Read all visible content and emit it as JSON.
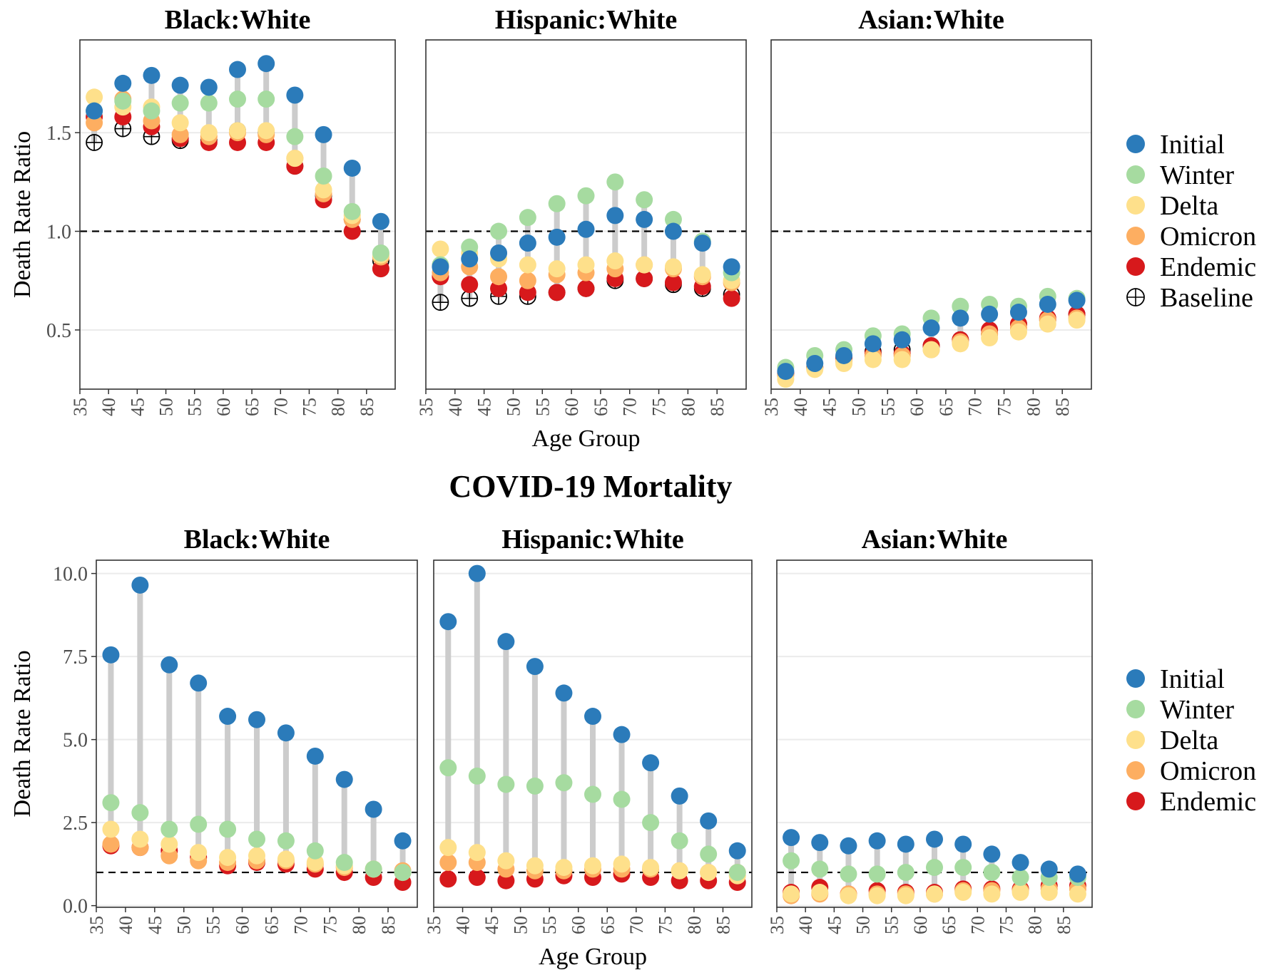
{
  "figure": {
    "middle_title": "COVID-19 Mortality",
    "colors": {
      "Initial": "#2b7bba",
      "Winter": "#a6dba0",
      "Delta": "#fee08b",
      "Omicron": "#fdae61",
      "Endemic": "#d7191c",
      "segment": "#cccccc",
      "gridline": "#ebebeb",
      "refline": "#000000",
      "panel_border": "#333333"
    }
  },
  "chart_data": [
    {
      "type": "scatter",
      "title": "Black:White",
      "xlabel": "",
      "ylabel": "Death Rate Ratio",
      "ylim": [
        0.2,
        1.97
      ],
      "yticks": [
        0.5,
        1.0,
        1.5
      ],
      "ytick_labels": [
        "0.5",
        "1.0",
        "1.5"
      ],
      "reference_line": 1.0,
      "categories": [
        "35",
        "40",
        "45",
        "50",
        "55",
        "60",
        "65",
        "70",
        "75",
        "80",
        "85"
      ],
      "x": [
        37.5,
        42.5,
        47.5,
        52.5,
        57.5,
        62.5,
        67.5,
        72.5,
        77.5,
        82.5,
        87.5
      ],
      "series": [
        {
          "name": "Initial",
          "values": [
            1.61,
            1.75,
            1.79,
            1.74,
            1.73,
            1.82,
            1.85,
            1.69,
            1.49,
            1.32,
            1.05
          ]
        },
        {
          "name": "Winter",
          "values": [
            1.61,
            1.66,
            1.61,
            1.65,
            1.65,
            1.67,
            1.67,
            1.48,
            1.28,
            1.1,
            0.89
          ]
        },
        {
          "name": "Delta",
          "values": [
            1.68,
            1.63,
            1.63,
            1.55,
            1.5,
            1.51,
            1.51,
            1.37,
            1.21,
            1.08,
            0.88
          ]
        },
        {
          "name": "Omicron",
          "values": [
            1.55,
            1.67,
            1.56,
            1.49,
            1.48,
            1.5,
            1.49,
            1.37,
            1.19,
            1.06,
            0.87
          ]
        },
        {
          "name": "Endemic",
          "values": [
            1.58,
            1.58,
            1.53,
            1.47,
            1.45,
            1.45,
            1.45,
            1.33,
            1.16,
            1.0,
            0.81
          ]
        },
        {
          "name": "Baseline",
          "values": [
            1.45,
            1.52,
            1.48,
            1.46,
            1.46,
            1.51,
            1.5,
            1.33,
            1.18,
            1.06,
            0.85
          ]
        }
      ]
    },
    {
      "type": "scatter",
      "title": "Hispanic:White",
      "xlabel": "Age Group",
      "ylabel": "",
      "ylim": [
        0.2,
        1.97
      ],
      "yticks": [
        0.5,
        1.0,
        1.5
      ],
      "reference_line": 1.0,
      "categories": [
        "35",
        "40",
        "45",
        "50",
        "55",
        "60",
        "65",
        "70",
        "75",
        "80",
        "85"
      ],
      "x": [
        37.5,
        42.5,
        47.5,
        52.5,
        57.5,
        62.5,
        67.5,
        72.5,
        77.5,
        82.5,
        87.5
      ],
      "series": [
        {
          "name": "Initial",
          "values": [
            0.82,
            0.86,
            0.89,
            0.94,
            0.97,
            1.01,
            1.08,
            1.06,
            1.0,
            0.94,
            0.82
          ]
        },
        {
          "name": "Winter",
          "values": [
            0.83,
            0.92,
            1.0,
            1.07,
            1.14,
            1.18,
            1.25,
            1.16,
            1.06,
            0.95,
            0.79
          ]
        },
        {
          "name": "Delta",
          "values": [
            0.91,
            0.89,
            0.86,
            0.83,
            0.81,
            0.83,
            0.85,
            0.83,
            0.82,
            0.78,
            0.75
          ]
        },
        {
          "name": "Omicron",
          "values": [
            0.79,
            0.82,
            0.77,
            0.75,
            0.78,
            0.79,
            0.81,
            0.83,
            0.81,
            0.77,
            0.74
          ]
        },
        {
          "name": "Endemic",
          "values": [
            0.77,
            0.73,
            0.71,
            0.69,
            0.69,
            0.71,
            0.76,
            0.76,
            0.74,
            0.72,
            0.66
          ]
        },
        {
          "name": "Baseline",
          "values": [
            0.64,
            0.66,
            0.67,
            0.67,
            0.69,
            0.71,
            0.75,
            0.76,
            0.73,
            0.71,
            0.68
          ]
        }
      ]
    },
    {
      "type": "scatter",
      "title": "Asian:White",
      "xlabel": "",
      "ylabel": "",
      "ylim": [
        0.2,
        1.97
      ],
      "yticks": [
        0.5,
        1.0,
        1.5
      ],
      "reference_line": 1.0,
      "categories": [
        "35",
        "40",
        "45",
        "50",
        "55",
        "60",
        "65",
        "70",
        "75",
        "80",
        "85"
      ],
      "x": [
        37.5,
        42.5,
        47.5,
        52.5,
        57.5,
        62.5,
        67.5,
        72.5,
        77.5,
        82.5,
        87.5
      ],
      "series": [
        {
          "name": "Initial",
          "values": [
            0.29,
            0.33,
            0.37,
            0.43,
            0.45,
            0.51,
            0.56,
            0.58,
            0.59,
            0.63,
            0.65
          ]
        },
        {
          "name": "Winter",
          "values": [
            0.31,
            0.37,
            0.4,
            0.47,
            0.48,
            0.56,
            0.62,
            0.63,
            0.62,
            0.67,
            0.66
          ]
        },
        {
          "name": "Delta",
          "values": [
            0.25,
            0.3,
            0.33,
            0.35,
            0.35,
            0.4,
            0.43,
            0.46,
            0.49,
            0.53,
            0.55
          ]
        },
        {
          "name": "Omicron",
          "values": [
            0.27,
            0.31,
            0.34,
            0.37,
            0.37,
            0.4,
            0.44,
            0.48,
            0.51,
            0.55,
            0.56
          ]
        },
        {
          "name": "Endemic",
          "values": [
            0.28,
            0.31,
            0.36,
            0.38,
            0.38,
            0.42,
            0.45,
            0.5,
            0.53,
            0.56,
            0.58
          ]
        },
        {
          "name": "Baseline",
          "values": [
            0.28,
            0.31,
            0.36,
            0.39,
            0.4,
            0.42,
            0.45,
            0.48,
            0.53,
            0.55,
            0.58
          ]
        }
      ]
    },
    {
      "type": "scatter",
      "title": "Black:White",
      "xlabel": "",
      "ylabel": "Death Rate Ratio",
      "ylim": [
        -0.05,
        10.4
      ],
      "yticks": [
        0.0,
        2.5,
        5.0,
        7.5,
        10.0
      ],
      "ytick_labels": [
        "0.0",
        "2.5",
        "5.0",
        "7.5",
        "10.0"
      ],
      "reference_line": 1.0,
      "categories": [
        "35",
        "40",
        "45",
        "50",
        "55",
        "60",
        "65",
        "70",
        "75",
        "80",
        "85"
      ],
      "x": [
        37.5,
        42.5,
        47.5,
        52.5,
        57.5,
        62.5,
        67.5,
        72.5,
        77.5,
        82.5,
        87.5
      ],
      "series": [
        {
          "name": "Initial",
          "values": [
            7.55,
            9.65,
            7.25,
            6.7,
            5.7,
            5.6,
            5.2,
            4.5,
            3.8,
            2.9,
            1.95
          ]
        },
        {
          "name": "Winter",
          "values": [
            3.1,
            2.8,
            2.3,
            2.45,
            2.3,
            2.0,
            1.95,
            1.65,
            1.3,
            1.1,
            1.0
          ]
        },
        {
          "name": "Delta",
          "values": [
            2.3,
            2.0,
            1.85,
            1.6,
            1.45,
            1.5,
            1.4,
            1.3,
            1.2,
            1.1,
            1.0
          ]
        },
        {
          "name": "Omicron",
          "values": [
            1.85,
            1.75,
            1.5,
            1.35,
            1.3,
            1.35,
            1.35,
            1.25,
            1.15,
            1.1,
            1.05
          ]
        },
        {
          "name": "Endemic",
          "values": [
            1.8,
            1.75,
            1.65,
            1.45,
            1.2,
            1.3,
            1.25,
            1.1,
            1.0,
            0.85,
            0.7
          ]
        }
      ]
    },
    {
      "type": "scatter",
      "title": "Hispanic:White",
      "xlabel": "Age Group",
      "ylabel": "",
      "ylim": [
        -0.05,
        10.4
      ],
      "yticks": [
        0.0,
        2.5,
        5.0,
        7.5,
        10.0
      ],
      "reference_line": 1.0,
      "categories": [
        "35",
        "40",
        "45",
        "50",
        "55",
        "60",
        "65",
        "70",
        "75",
        "80",
        "85"
      ],
      "x": [
        37.5,
        42.5,
        47.5,
        52.5,
        57.5,
        62.5,
        67.5,
        72.5,
        77.5,
        82.5,
        87.5
      ],
      "series": [
        {
          "name": "Initial",
          "values": [
            8.55,
            10.0,
            7.95,
            7.2,
            6.4,
            5.7,
            5.15,
            4.3,
            3.3,
            2.55,
            1.65
          ]
        },
        {
          "name": "Winter",
          "values": [
            4.15,
            3.9,
            3.65,
            3.6,
            3.7,
            3.35,
            3.2,
            2.5,
            1.95,
            1.55,
            1.0
          ]
        },
        {
          "name": "Delta",
          "values": [
            1.75,
            1.6,
            1.35,
            1.2,
            1.15,
            1.2,
            1.25,
            1.15,
            1.05,
            1.0,
            0.9
          ]
        },
        {
          "name": "Omicron",
          "values": [
            1.3,
            1.3,
            1.1,
            1.05,
            1.05,
            1.1,
            1.1,
            1.1,
            1.05,
            1.0,
            1.0
          ]
        },
        {
          "name": "Endemic",
          "values": [
            0.8,
            0.85,
            0.75,
            0.8,
            0.9,
            0.85,
            0.95,
            0.85,
            0.75,
            0.75,
            0.7
          ]
        }
      ]
    },
    {
      "type": "scatter",
      "title": "Asian:White",
      "xlabel": "",
      "ylabel": "",
      "ylim": [
        -0.05,
        10.4
      ],
      "yticks": [
        0.0,
        2.5,
        5.0,
        7.5,
        10.0
      ],
      "reference_line": 1.0,
      "categories": [
        "35",
        "40",
        "45",
        "50",
        "55",
        "60",
        "65",
        "70",
        "75",
        "80",
        "85"
      ],
      "x": [
        37.5,
        42.5,
        47.5,
        52.5,
        57.5,
        62.5,
        67.5,
        72.5,
        77.5,
        82.5,
        87.5
      ],
      "series": [
        {
          "name": "Initial",
          "values": [
            2.05,
            1.9,
            1.8,
            1.95,
            1.85,
            2.0,
            1.85,
            1.55,
            1.3,
            1.1,
            0.95
          ]
        },
        {
          "name": "Winter",
          "values": [
            1.35,
            1.1,
            0.95,
            0.95,
            1.0,
            1.15,
            1.15,
            1.0,
            0.85,
            0.85,
            0.85
          ]
        },
        {
          "name": "Delta",
          "values": [
            0.35,
            0.4,
            0.3,
            0.3,
            0.3,
            0.35,
            0.4,
            0.35,
            0.4,
            0.4,
            0.35
          ]
        },
        {
          "name": "Omicron",
          "values": [
            0.3,
            0.35,
            0.35,
            0.35,
            0.35,
            0.35,
            0.45,
            0.45,
            0.45,
            0.5,
            0.5
          ]
        },
        {
          "name": "Endemic",
          "values": [
            0.4,
            0.55,
            0.35,
            0.45,
            0.4,
            0.4,
            0.5,
            0.5,
            0.5,
            0.6,
            0.6
          ]
        }
      ]
    }
  ],
  "legends": {
    "top": [
      "Initial",
      "Winter",
      "Delta",
      "Omicron",
      "Endemic",
      "Baseline"
    ],
    "bottom": [
      "Initial",
      "Winter",
      "Delta",
      "Omicron",
      "Endemic"
    ]
  }
}
